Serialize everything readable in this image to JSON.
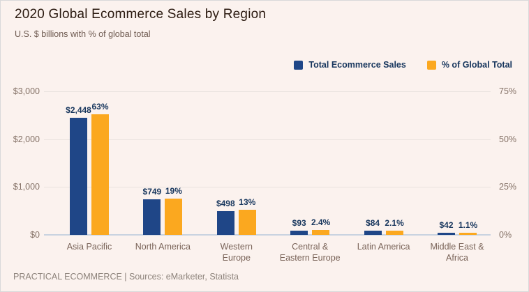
{
  "header": {
    "title": "2020 Global Ecommerce Sales by Region",
    "subtitle": "U.S. $ billions with % of global total"
  },
  "legend": [
    {
      "label": "Total Ecommerce Sales",
      "color": "#1f4687"
    },
    {
      "label": "% of Global Total",
      "color": "#fba81f"
    }
  ],
  "chart_data": {
    "type": "bar",
    "title": "2020 Global Ecommerce Sales by Region",
    "subtitle": "U.S. $ billions with % of global total",
    "categories": [
      "Asia Pacific",
      "North America",
      "Western Europe",
      "Central & Eastern Europe",
      "Latin America",
      "Middle East & Africa"
    ],
    "category_lines": [
      [
        "Asia Pacific"
      ],
      [
        "North America"
      ],
      [
        "Western",
        "Europe"
      ],
      [
        "Central &",
        "Eastern Europe"
      ],
      [
        "Latin America"
      ],
      [
        "Middle East &",
        "Africa"
      ]
    ],
    "series": [
      {
        "name": "Total Ecommerce Sales",
        "axis": "left",
        "color": "#1f4687",
        "values": [
          2448,
          749,
          498,
          93,
          84,
          42
        ],
        "labels": [
          "$2,448",
          "$749",
          "$498",
          "$93",
          "$84",
          "$42"
        ]
      },
      {
        "name": "% of Global Total",
        "axis": "right",
        "color": "#fba81f",
        "values": [
          63,
          19,
          13,
          2.4,
          2.1,
          1.1
        ],
        "labels": [
          "63%",
          "19%",
          "13%",
          "2.4%",
          "2.1%",
          "1.1%"
        ]
      }
    ],
    "y_left": {
      "ticks": [
        "$0",
        "$1,000",
        "$2,000",
        "$3,000"
      ],
      "values": [
        0,
        1000,
        2000,
        3000
      ],
      "min": 0,
      "max": 3000
    },
    "y_right": {
      "ticks": [
        "0%",
        "25%",
        "50%",
        "75%"
      ],
      "values": [
        0,
        25,
        50,
        75
      ],
      "min": 0,
      "max": 75
    },
    "grid": true,
    "legend_position": "top-right"
  },
  "colors": {
    "background": "#fbf2ee",
    "bar_blue": "#1f4687",
    "bar_orange": "#fba81f",
    "grid": "#eae3df",
    "baseline": "#c9d3e0",
    "title_text": "#2b1a10",
    "subtitle_text": "#6e5a50",
    "axis_text": "#857267",
    "data_label_text": "#17365d",
    "category_text": "#7a6459",
    "footer_text": "#8d837b"
  },
  "footer": {
    "source_line": "PRACTICAL ECOMMERCE | Sources: eMarketer, Statista"
  }
}
